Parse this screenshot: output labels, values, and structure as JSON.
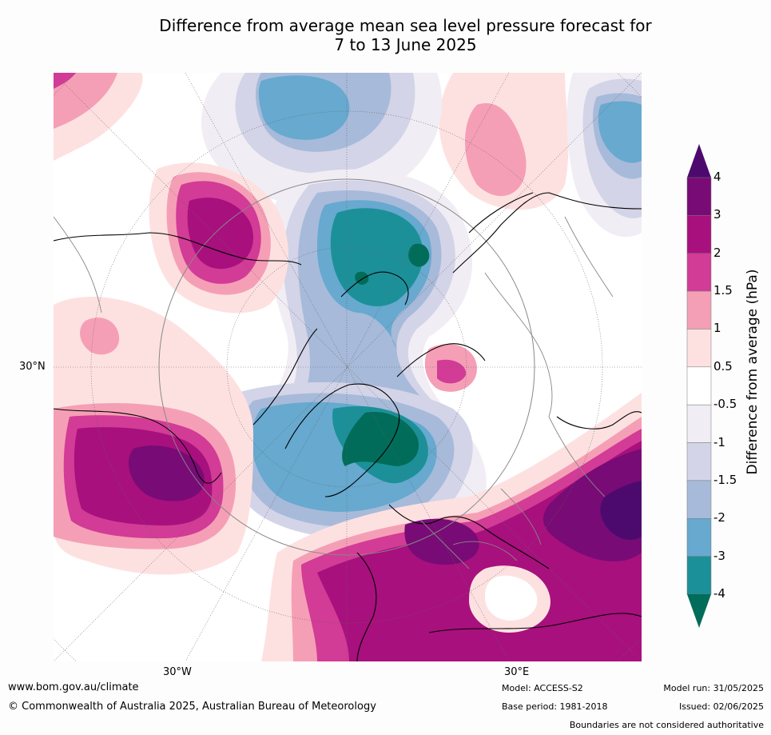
{
  "title_line1": "Difference from average mean sea level pressure forecast for",
  "title_line2": "7 to 13 June 2025",
  "axis_labels": {
    "lat_30n": "30°N",
    "lon_30w": "30°W",
    "lon_30e": "30°E"
  },
  "colorbar": {
    "label": "Difference from average (hPa)",
    "ticks": [
      "4",
      "3",
      "2",
      "1.5",
      "1",
      "0.5",
      "-0.5",
      "-1",
      "-1.5",
      "-2",
      "-3",
      "-4"
    ],
    "colors_top_to_bottom": [
      "#4d0a6e",
      "#780b75",
      "#a8107d",
      "#d23b96",
      "#f59fb6",
      "#fde1e0",
      "#ffffff",
      "#f1edf4",
      "#d3d4e8",
      "#a7bad9",
      "#67a9cf",
      "#1c9099",
      "#016c59"
    ]
  },
  "footer": {
    "url": "www.bom.gov.au/climate",
    "copyright": "© Commonwealth of Australia 2025, Australian Bureau of Meteorology",
    "model": "Model: ACCESS-S2",
    "base_period": "Base period: 1981-2018",
    "model_run": "Model run: 31/05/2025",
    "issued": "Issued: 02/06/2025",
    "disclaimer": "Boundaries are not considered authoritative"
  }
}
